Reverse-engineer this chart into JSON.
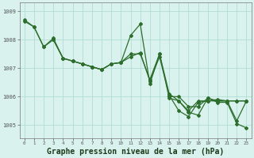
{
  "background_color": "#d9f2ee",
  "grid_color": "#b0ddd4",
  "line_color": "#2d6e2d",
  "marker": "D",
  "markersize": 2.0,
  "linewidth": 0.9,
  "xlabel": "Graphe pression niveau de la mer (hPa)",
  "xlabel_fontsize": 7.0,
  "ylabel_ticks": [
    1005,
    1006,
    1007,
    1008,
    1009
  ],
  "xlim": [
    -0.5,
    23.5
  ],
  "ylim": [
    1004.55,
    1009.3
  ],
  "series": [
    [
      1008.65,
      1008.45,
      1007.75,
      1008.05,
      1007.35,
      1007.25,
      1007.15,
      1007.05,
      1006.95,
      1007.15,
      1007.2,
      1008.15,
      1008.55,
      1006.45,
      1007.5,
      1005.95,
      1005.85,
      1005.45,
      1005.35,
      1005.95,
      1005.8,
      1005.8,
      1005.05,
      1004.9
    ],
    [
      null,
      null,
      null,
      null,
      null,
      null,
      null,
      null,
      null,
      null,
      null,
      null,
      null,
      null,
      null,
      1006.0,
      1006.0,
      1005.65,
      1005.65,
      1005.95,
      1005.85,
      1005.85,
      1005.85,
      1005.85
    ],
    [
      1008.7,
      1008.45,
      1007.75,
      1008.0,
      1007.35,
      1007.25,
      1007.15,
      1007.05,
      1006.95,
      1007.15,
      1007.2,
      1007.5,
      1007.5,
      1006.6,
      1007.5,
      1006.1,
      1005.85,
      1005.5,
      1005.85,
      1005.85,
      1005.9,
      1005.85,
      1005.85,
      1005.85
    ],
    [
      null,
      null,
      null,
      1008.0,
      1007.35,
      1007.25,
      1007.15,
      1007.05,
      1006.95,
      1007.15,
      1007.2,
      1007.4,
      1007.55,
      1006.55,
      1007.4,
      1006.05,
      1005.5,
      1005.3,
      1005.8,
      1005.85,
      1005.85,
      1005.85,
      1005.15,
      1005.85
    ]
  ],
  "xtick_labels": [
    "0",
    "1",
    "2",
    "3",
    "4",
    "5",
    "6",
    "7",
    "8",
    "9",
    "10",
    "11",
    "12",
    "13",
    "14",
    "15",
    "16",
    "17",
    "18",
    "19",
    "20",
    "21",
    "22",
    "23"
  ]
}
